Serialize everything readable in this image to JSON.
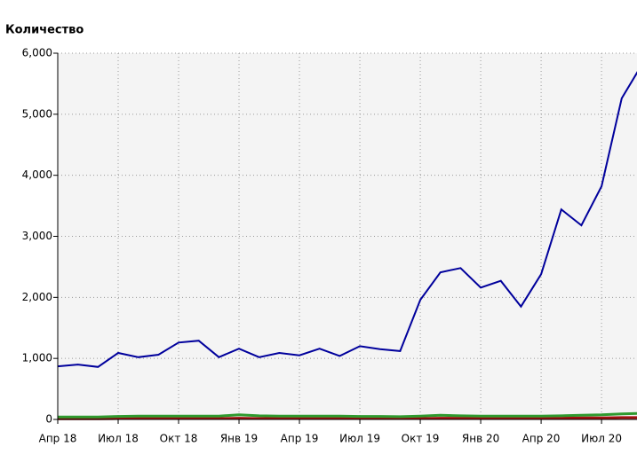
{
  "chart_data": {
    "type": "line",
    "title": "Количество",
    "categories": [
      "Апр 18",
      null,
      null,
      "Июл 18",
      null,
      null,
      "Окт 18",
      null,
      null,
      "Янв 19",
      null,
      null,
      "Апр 19",
      null,
      null,
      "Июл 19",
      null,
      null,
      "Окт 19",
      null,
      null,
      "Янв 20",
      null,
      null,
      "Апр 20",
      null,
      null,
      "Июл 20",
      null,
      null
    ],
    "series": [
      {
        "color": "#00009c",
        "values": [
          870,
          900,
          860,
          1090,
          1020,
          1060,
          1260,
          1290,
          1020,
          1160,
          1020,
          1090,
          1050,
          1160,
          1040,
          1200,
          1150,
          1120,
          1960,
          2410,
          2480,
          2160,
          2270,
          1850,
          2380,
          3440,
          3180,
          3820,
          5260,
          5810
        ]
      },
      {
        "color": "#2e9a2e",
        "values": [
          40,
          40,
          40,
          50,
          55,
          55,
          55,
          55,
          55,
          75,
          60,
          55,
          55,
          55,
          55,
          50,
          50,
          45,
          55,
          70,
          60,
          55,
          55,
          55,
          55,
          60,
          70,
          75,
          90,
          100
        ]
      },
      {
        "color": "#a01010",
        "values": [
          10,
          10,
          10,
          15,
          15,
          15,
          15,
          15,
          15,
          20,
          15,
          15,
          15,
          15,
          15,
          15,
          15,
          15,
          15,
          20,
          20,
          20,
          20,
          20,
          20,
          20,
          25,
          25,
          30,
          30
        ]
      }
    ],
    "ylim": [
      0,
      6000
    ],
    "yticks": [
      0,
      {
        "value": 1000,
        "label": "1,000"
      },
      {
        "value": 2000,
        "label": "2,000"
      },
      {
        "value": 3000,
        "label": "3,000"
      },
      {
        "value": 4000,
        "label": "4,000"
      },
      {
        "value": 5000,
        "label": "5,000"
      },
      {
        "value": 6000,
        "label": "6,000"
      }
    ],
    "grid": true
  }
}
